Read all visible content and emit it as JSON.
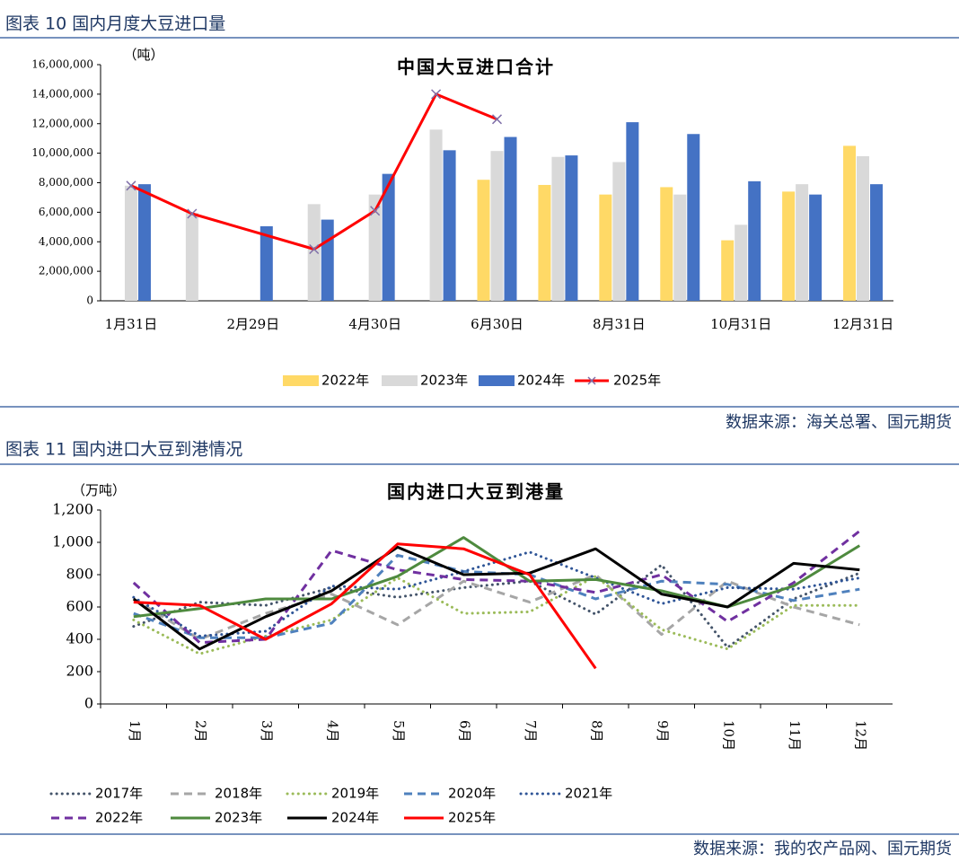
{
  "headings": [
    "图表 10  国内月度大豆进口量",
    "图表 11  国内进口大豆到港情况"
  ],
  "sources": [
    "数据来源：海关总署、国元期货",
    "数据来源：我的农产品网、国元期货"
  ],
  "chart_data": [
    {
      "type": "bar",
      "title": "中国大豆进口合计",
      "y_label": "（吨）",
      "categories": [
        "1月31日",
        null,
        "2月29日",
        null,
        "4月30日",
        null,
        "6月30日",
        null,
        "8月31日",
        null,
        "10月31日",
        null,
        "12月31日"
      ],
      "series": [
        {
          "name": "2022年",
          "color": "#ffd966",
          "values": [
            null,
            null,
            null,
            null,
            null,
            null,
            8200000,
            7850000,
            7200000,
            7700000,
            4100000,
            7400000,
            10500000
          ]
        },
        {
          "name": "2023年",
          "color": "#d9d9d9",
          "values": [
            7800000,
            5950000,
            null,
            6550000,
            7200000,
            11600000,
            10150000,
            9750000,
            9400000,
            7200000,
            5150000,
            7900000,
            9800000
          ]
        },
        {
          "name": "2024年",
          "color": "#4472c4",
          "values": [
            7900000,
            null,
            5050000,
            5500000,
            8600000,
            10200000,
            11100000,
            9850000,
            12100000,
            11300000,
            8100000,
            7200000,
            7900000
          ]
        },
        {
          "name": "2025年",
          "color": "#ff0000",
          "type": "line",
          "marker": "x",
          "marker_color": "#7f6fa8",
          "connect_nulls": true,
          "values": [
            7800000,
            5900000,
            null,
            3500000,
            6100000,
            14000000,
            12300000,
            null,
            null,
            null,
            null,
            null,
            null
          ]
        }
      ],
      "ylim": [
        0,
        16000000
      ],
      "yticks": [
        0,
        {
          "value": 2000000,
          "label": "2,000,000"
        },
        {
          "value": 4000000,
          "label": "4,000,000"
        },
        {
          "value": 6000000,
          "label": "6,000,000"
        },
        {
          "value": 8000000,
          "label": "8,000,000"
        },
        {
          "value": 10000000,
          "label": "10,000,000"
        },
        {
          "value": 12000000,
          "label": "12,000,000"
        },
        {
          "value": 14000000,
          "label": "14,000,000"
        },
        {
          "value": 16000000,
          "label": "16,000,000"
        }
      ],
      "legend": "bottom"
    },
    {
      "type": "line",
      "title": "国内进口大豆到港量",
      "y_label": "（万吨）",
      "categories": [
        "1月",
        "2月",
        "3月",
        "4月",
        "5月",
        "6月",
        "7月",
        "8月",
        "9月",
        "10月",
        "11月",
        "12月"
      ],
      "series": [
        {
          "name": "2017年",
          "color": "#44546a",
          "dash": "dotted",
          "values": [
            480,
            630,
            610,
            720,
            660,
            720,
            760,
            555,
            860,
            350,
            650,
            810
          ]
        },
        {
          "name": "2018年",
          "color": "#a6a6a6",
          "dash": "dashed",
          "values": [
            650,
            400,
            560,
            680,
            490,
            760,
            630,
            800,
            430,
            760,
            600,
            490
          ]
        },
        {
          "name": "2019年",
          "color": "#9bbb59",
          "dash": "dotted",
          "values": [
            520,
            310,
            420,
            520,
            780,
            560,
            570,
            790,
            460,
            340,
            610,
            610
          ]
        },
        {
          "name": "2020年",
          "color": "#4f81bd",
          "dash": "dashed",
          "values": [
            560,
            410,
            410,
            500,
            920,
            820,
            800,
            650,
            760,
            740,
            640,
            710
          ]
        },
        {
          "name": "2021年",
          "color": "#2f5597",
          "dash": "dotted",
          "values": [
            660,
            420,
            450,
            730,
            710,
            820,
            940,
            780,
            620,
            720,
            710,
            780
          ]
        },
        {
          "name": "2022年",
          "color": "#7030a0",
          "dash": "dashed",
          "values": [
            750,
            380,
            400,
            950,
            830,
            770,
            760,
            690,
            800,
            510,
            750,
            1070
          ]
        },
        {
          "name": "2023年",
          "color": "#4e8a3e",
          "dash": "solid",
          "values": [
            540,
            590,
            650,
            650,
            790,
            1030,
            760,
            770,
            700,
            600,
            730,
            980
          ]
        },
        {
          "name": "2024年",
          "color": "#000000",
          "dash": "solid",
          "values": [
            650,
            340,
            540,
            700,
            970,
            800,
            810,
            960,
            680,
            600,
            870,
            830
          ]
        },
        {
          "name": "2025年",
          "color": "#ff0000",
          "dash": "solid",
          "values": [
            630,
            610,
            400,
            620,
            990,
            960,
            800,
            220,
            null,
            null,
            null,
            null
          ]
        }
      ],
      "ylim": [
        0,
        1200
      ],
      "yticks": [
        0,
        200,
        400,
        600,
        800,
        {
          "value": 1000,
          "label": "1,000"
        },
        {
          "value": 1200,
          "label": "1,200"
        }
      ],
      "legend": "bottom"
    }
  ]
}
